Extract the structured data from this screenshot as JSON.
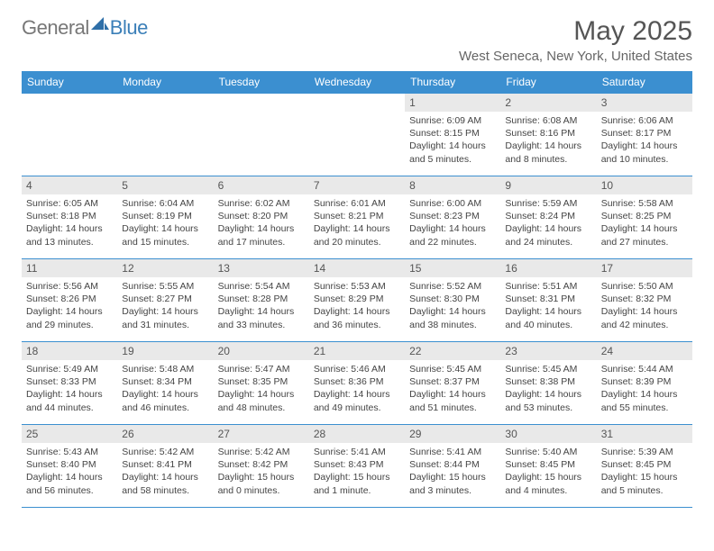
{
  "brand": {
    "part1": "General",
    "part2": "Blue"
  },
  "title": "May 2025",
  "location": "West Seneca, New York, United States",
  "colors": {
    "header_bg": "#3b8fd0",
    "header_text": "#ffffff",
    "daynum_bg": "#e9e9e9",
    "border": "#3b8fd0",
    "text": "#444444"
  },
  "weekdays": [
    "Sunday",
    "Monday",
    "Tuesday",
    "Wednesday",
    "Thursday",
    "Friday",
    "Saturday"
  ],
  "weeks": [
    [
      {
        "empty": true
      },
      {
        "empty": true
      },
      {
        "empty": true
      },
      {
        "empty": true
      },
      {
        "day": "1",
        "sunrise": "Sunrise: 6:09 AM",
        "sunset": "Sunset: 8:15 PM",
        "daylight": "Daylight: 14 hours and 5 minutes."
      },
      {
        "day": "2",
        "sunrise": "Sunrise: 6:08 AM",
        "sunset": "Sunset: 8:16 PM",
        "daylight": "Daylight: 14 hours and 8 minutes."
      },
      {
        "day": "3",
        "sunrise": "Sunrise: 6:06 AM",
        "sunset": "Sunset: 8:17 PM",
        "daylight": "Daylight: 14 hours and 10 minutes."
      }
    ],
    [
      {
        "day": "4",
        "sunrise": "Sunrise: 6:05 AM",
        "sunset": "Sunset: 8:18 PM",
        "daylight": "Daylight: 14 hours and 13 minutes."
      },
      {
        "day": "5",
        "sunrise": "Sunrise: 6:04 AM",
        "sunset": "Sunset: 8:19 PM",
        "daylight": "Daylight: 14 hours and 15 minutes."
      },
      {
        "day": "6",
        "sunrise": "Sunrise: 6:02 AM",
        "sunset": "Sunset: 8:20 PM",
        "daylight": "Daylight: 14 hours and 17 minutes."
      },
      {
        "day": "7",
        "sunrise": "Sunrise: 6:01 AM",
        "sunset": "Sunset: 8:21 PM",
        "daylight": "Daylight: 14 hours and 20 minutes."
      },
      {
        "day": "8",
        "sunrise": "Sunrise: 6:00 AM",
        "sunset": "Sunset: 8:23 PM",
        "daylight": "Daylight: 14 hours and 22 minutes."
      },
      {
        "day": "9",
        "sunrise": "Sunrise: 5:59 AM",
        "sunset": "Sunset: 8:24 PM",
        "daylight": "Daylight: 14 hours and 24 minutes."
      },
      {
        "day": "10",
        "sunrise": "Sunrise: 5:58 AM",
        "sunset": "Sunset: 8:25 PM",
        "daylight": "Daylight: 14 hours and 27 minutes."
      }
    ],
    [
      {
        "day": "11",
        "sunrise": "Sunrise: 5:56 AM",
        "sunset": "Sunset: 8:26 PM",
        "daylight": "Daylight: 14 hours and 29 minutes."
      },
      {
        "day": "12",
        "sunrise": "Sunrise: 5:55 AM",
        "sunset": "Sunset: 8:27 PM",
        "daylight": "Daylight: 14 hours and 31 minutes."
      },
      {
        "day": "13",
        "sunrise": "Sunrise: 5:54 AM",
        "sunset": "Sunset: 8:28 PM",
        "daylight": "Daylight: 14 hours and 33 minutes."
      },
      {
        "day": "14",
        "sunrise": "Sunrise: 5:53 AM",
        "sunset": "Sunset: 8:29 PM",
        "daylight": "Daylight: 14 hours and 36 minutes."
      },
      {
        "day": "15",
        "sunrise": "Sunrise: 5:52 AM",
        "sunset": "Sunset: 8:30 PM",
        "daylight": "Daylight: 14 hours and 38 minutes."
      },
      {
        "day": "16",
        "sunrise": "Sunrise: 5:51 AM",
        "sunset": "Sunset: 8:31 PM",
        "daylight": "Daylight: 14 hours and 40 minutes."
      },
      {
        "day": "17",
        "sunrise": "Sunrise: 5:50 AM",
        "sunset": "Sunset: 8:32 PM",
        "daylight": "Daylight: 14 hours and 42 minutes."
      }
    ],
    [
      {
        "day": "18",
        "sunrise": "Sunrise: 5:49 AM",
        "sunset": "Sunset: 8:33 PM",
        "daylight": "Daylight: 14 hours and 44 minutes."
      },
      {
        "day": "19",
        "sunrise": "Sunrise: 5:48 AM",
        "sunset": "Sunset: 8:34 PM",
        "daylight": "Daylight: 14 hours and 46 minutes."
      },
      {
        "day": "20",
        "sunrise": "Sunrise: 5:47 AM",
        "sunset": "Sunset: 8:35 PM",
        "daylight": "Daylight: 14 hours and 48 minutes."
      },
      {
        "day": "21",
        "sunrise": "Sunrise: 5:46 AM",
        "sunset": "Sunset: 8:36 PM",
        "daylight": "Daylight: 14 hours and 49 minutes."
      },
      {
        "day": "22",
        "sunrise": "Sunrise: 5:45 AM",
        "sunset": "Sunset: 8:37 PM",
        "daylight": "Daylight: 14 hours and 51 minutes."
      },
      {
        "day": "23",
        "sunrise": "Sunrise: 5:45 AM",
        "sunset": "Sunset: 8:38 PM",
        "daylight": "Daylight: 14 hours and 53 minutes."
      },
      {
        "day": "24",
        "sunrise": "Sunrise: 5:44 AM",
        "sunset": "Sunset: 8:39 PM",
        "daylight": "Daylight: 14 hours and 55 minutes."
      }
    ],
    [
      {
        "day": "25",
        "sunrise": "Sunrise: 5:43 AM",
        "sunset": "Sunset: 8:40 PM",
        "daylight": "Daylight: 14 hours and 56 minutes."
      },
      {
        "day": "26",
        "sunrise": "Sunrise: 5:42 AM",
        "sunset": "Sunset: 8:41 PM",
        "daylight": "Daylight: 14 hours and 58 minutes."
      },
      {
        "day": "27",
        "sunrise": "Sunrise: 5:42 AM",
        "sunset": "Sunset: 8:42 PM",
        "daylight": "Daylight: 15 hours and 0 minutes."
      },
      {
        "day": "28",
        "sunrise": "Sunrise: 5:41 AM",
        "sunset": "Sunset: 8:43 PM",
        "daylight": "Daylight: 15 hours and 1 minute."
      },
      {
        "day": "29",
        "sunrise": "Sunrise: 5:41 AM",
        "sunset": "Sunset: 8:44 PM",
        "daylight": "Daylight: 15 hours and 3 minutes."
      },
      {
        "day": "30",
        "sunrise": "Sunrise: 5:40 AM",
        "sunset": "Sunset: 8:45 PM",
        "daylight": "Daylight: 15 hours and 4 minutes."
      },
      {
        "day": "31",
        "sunrise": "Sunrise: 5:39 AM",
        "sunset": "Sunset: 8:45 PM",
        "daylight": "Daylight: 15 hours and 5 minutes."
      }
    ]
  ]
}
